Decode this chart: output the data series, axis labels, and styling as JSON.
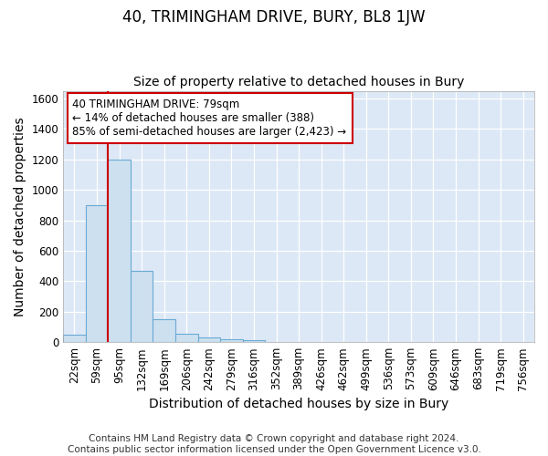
{
  "title": "40, TRIMINGHAM DRIVE, BURY, BL8 1JW",
  "subtitle": "Size of property relative to detached houses in Bury",
  "xlabel": "Distribution of detached houses by size in Bury",
  "ylabel": "Number of detached properties",
  "categories": [
    "22sqm",
    "59sqm",
    "95sqm",
    "132sqm",
    "169sqm",
    "206sqm",
    "242sqm",
    "279sqm",
    "316sqm",
    "352sqm",
    "389sqm",
    "426sqm",
    "462sqm",
    "499sqm",
    "536sqm",
    "573sqm",
    "609sqm",
    "646sqm",
    "683sqm",
    "719sqm",
    "756sqm"
  ],
  "values": [
    50,
    900,
    1200,
    470,
    150,
    55,
    30,
    20,
    15,
    0,
    0,
    0,
    0,
    0,
    0,
    0,
    0,
    0,
    0,
    0,
    0
  ],
  "bar_color": "#cde0f0",
  "bar_edge_color": "#6aaad4",
  "vline_x": 1.5,
  "vline_color": "#cc0000",
  "annotation_text": "40 TRIMINGHAM DRIVE: 79sqm\n← 14% of detached houses are smaller (388)\n85% of semi-detached houses are larger (2,423) →",
  "annotation_box_facecolor": "#ffffff",
  "annotation_box_edgecolor": "#cc0000",
  "ylim": [
    0,
    1650
  ],
  "yticks": [
    0,
    200,
    400,
    600,
    800,
    1000,
    1200,
    1400,
    1600
  ],
  "footer": "Contains HM Land Registry data © Crown copyright and database right 2024.\nContains public sector information licensed under the Open Government Licence v3.0.",
  "fig_bg_color": "#ffffff",
  "plot_bg_color": "#dce8f5",
  "title_fontsize": 12,
  "subtitle_fontsize": 10,
  "axis_label_fontsize": 10,
  "tick_fontsize": 8.5,
  "annotation_fontsize": 8.5,
  "footer_fontsize": 7.5
}
